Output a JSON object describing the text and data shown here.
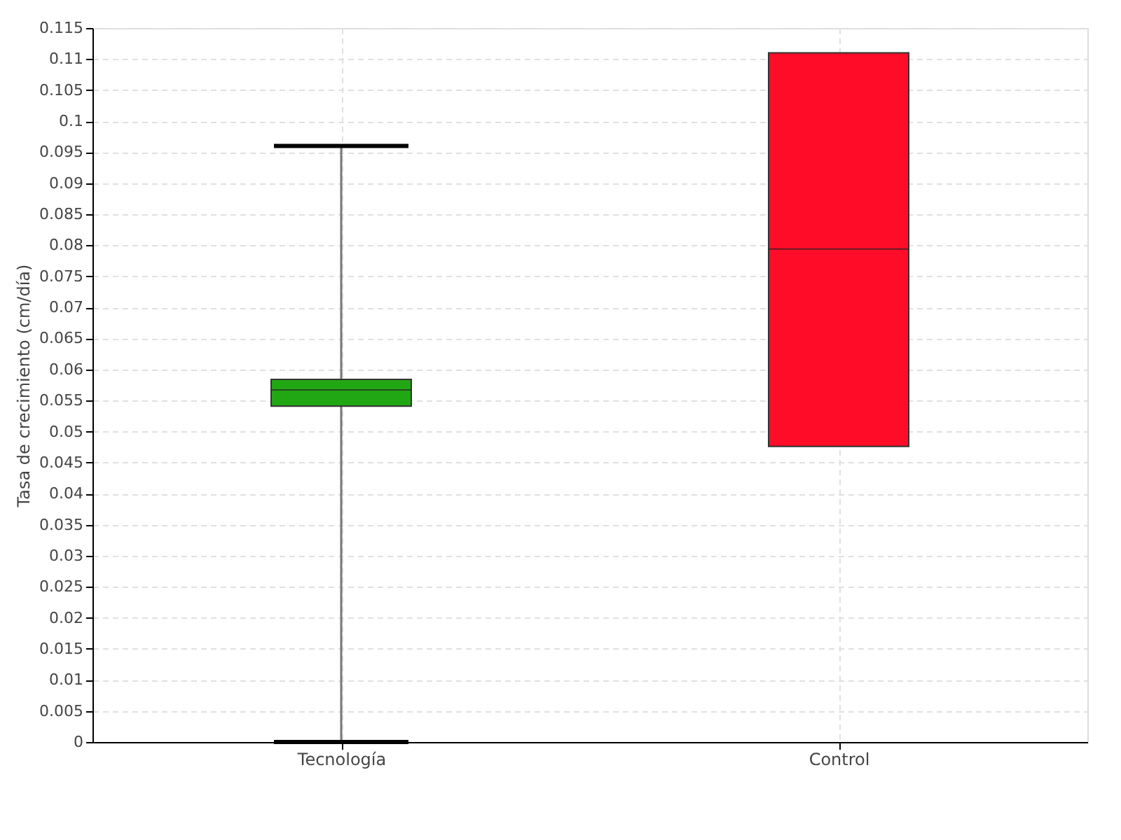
{
  "chart_data": {
    "type": "box",
    "ylabel": "Tasa de crecimiento (cm/día)",
    "categories": [
      "Tecnología",
      "Control"
    ],
    "colors": [
      "#22a714",
      "#ff0c28"
    ],
    "boxes": [
      {
        "low": 0,
        "q1": 0.0541,
        "median": 0.0567,
        "q3": 0.0584,
        "high": 0.096
      },
      {
        "low": 0.0476,
        "q1": 0.0476,
        "median": 0.0794,
        "q3": 0.111,
        "high": 0.111
      }
    ],
    "ylim": [
      0,
      0.115
    ],
    "yticks": [
      0,
      0.005,
      0.01,
      0.015,
      0.02,
      0.025,
      0.03,
      0.035,
      0.04,
      0.045,
      0.05,
      0.055,
      0.06,
      0.065,
      0.07,
      0.075,
      0.08,
      0.085,
      0.09,
      0.095,
      0.1,
      0.105,
      0.11,
      0.115
    ],
    "grid": true
  }
}
